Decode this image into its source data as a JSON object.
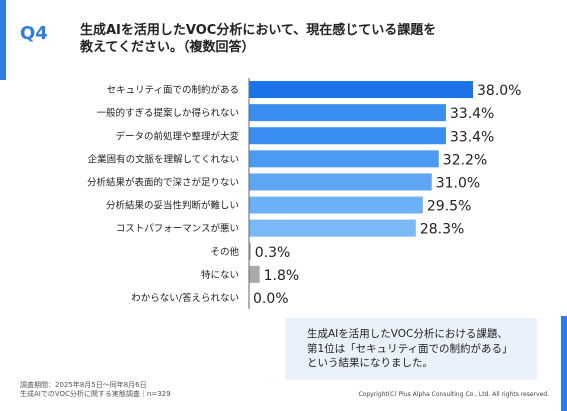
{
  "question": {
    "label": "Q4",
    "title_line1": "生成AIを活用したVOC分析において、現在感じている課題を",
    "title_line2": "教えてください。（複数回答）"
  },
  "chart_data": {
    "type": "bar",
    "orientation": "horizontal",
    "categories": [
      "セキュリティ面での制約がある",
      "一般的すぎる提案しか得られない",
      "データの前処理や整理が大変",
      "企業固有の文脈を理解してくれない",
      "分析結果が表面的で深さが足りない",
      "分析結果の妥当性判断が難しい",
      "コストパフォーマンスが悪い",
      "その他",
      "特にない",
      "わからない/答えられない"
    ],
    "values": [
      38.0,
      33.4,
      33.4,
      32.2,
      31.0,
      29.5,
      28.3,
      0.3,
      1.8,
      0.0
    ],
    "value_labels": [
      "38.0%",
      "33.4%",
      "33.4%",
      "32.2%",
      "31.0%",
      "29.5%",
      "28.3%",
      "0.3%",
      "1.8%",
      "0.0%"
    ],
    "colors": [
      "#1a73e8",
      "#3a8ef0",
      "#3a8ef0",
      "#4c9af2",
      "#5ea5f4",
      "#6cb0f6",
      "#79b9f7",
      "#aaaaaa",
      "#aaaaaa",
      "#aaaaaa"
    ],
    "xlim": [
      0,
      40
    ]
  },
  "summary": {
    "line1": "生成AIを活用したVOC分析における課題、",
    "line2": "第1位は「セキュリティ面での制約がある」",
    "line3": "という結果になりました。"
  },
  "footer": {
    "survey_period": "調査期間：2025年8月5日～同年8月6日",
    "survey_name": "生成AIでのVOC分析に関する実態調査｜n=329",
    "copyright": "Copyright(C) Plus Alpha Consulting Co., Ltd. All rights reserved."
  }
}
